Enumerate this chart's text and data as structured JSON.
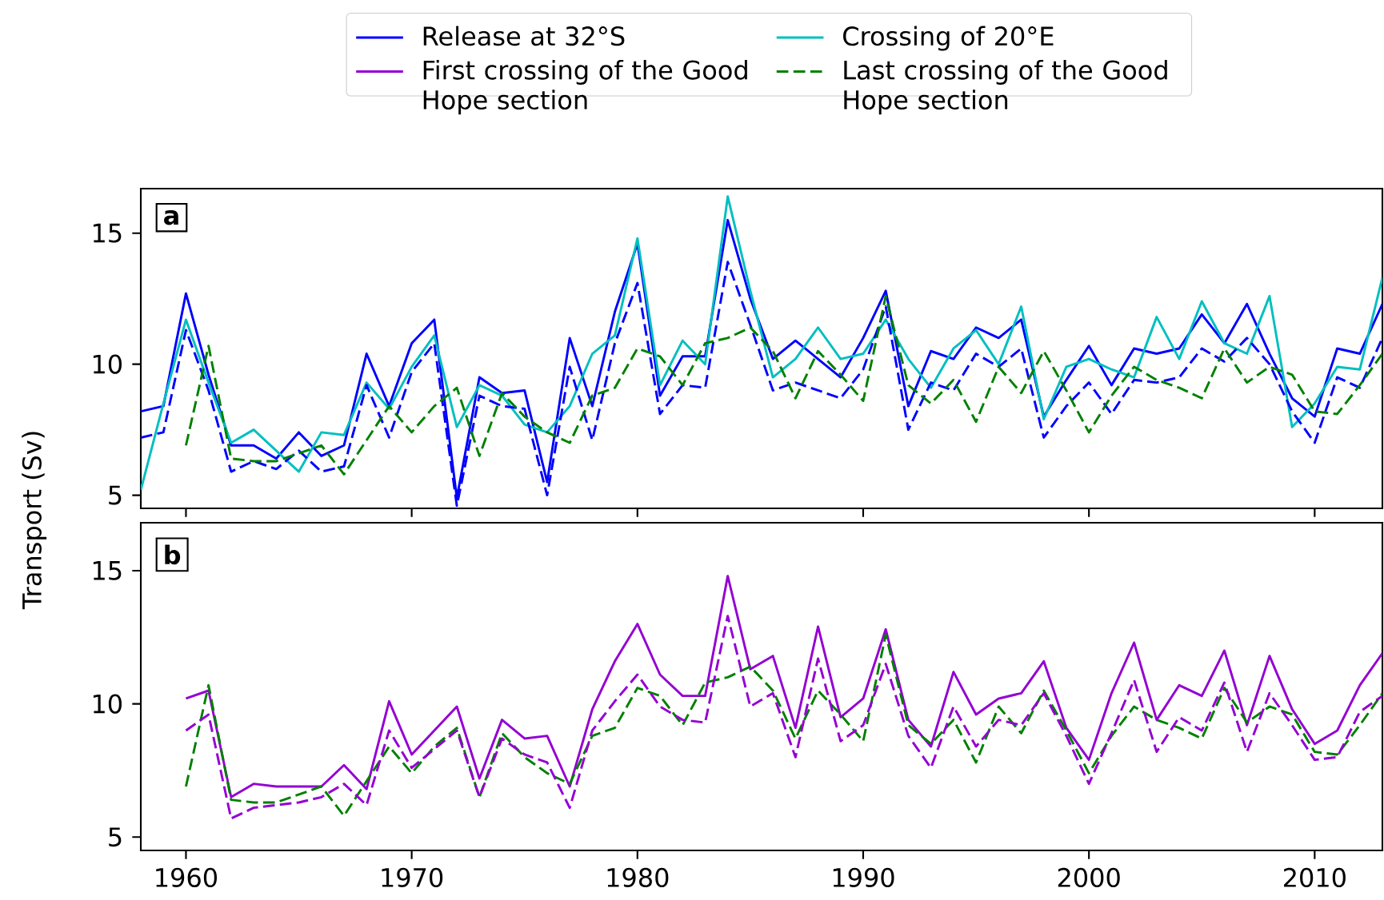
{
  "chart_data": [
    {
      "type": "line",
      "annotations": [
        "a"
      ],
      "legend": "top",
      "tick_labels": "y",
      "x": [
        1958,
        1959,
        1960,
        1961,
        1962,
        1963,
        1964,
        1965,
        1966,
        1967,
        1968,
        1969,
        1970,
        1971,
        1972,
        1973,
        1974,
        1975,
        1976,
        1977,
        1978,
        1979,
        1980,
        1981,
        1982,
        1983,
        1984,
        1985,
        1986,
        1987,
        1988,
        1989,
        1990,
        1991,
        1992,
        1993,
        1994,
        1995,
        1996,
        1997,
        1998,
        1999,
        2000,
        2001,
        2002,
        2003,
        2004,
        2005,
        2006,
        2007,
        2008,
        2009,
        2010,
        2011,
        2012,
        2013
      ],
      "xlim": [
        1958,
        2013
      ],
      "ylim": [
        4.5,
        16.7
      ],
      "xticks": [
        1960,
        1970,
        1980,
        1990,
        2000,
        2010
      ],
      "yticks": [
        5,
        10,
        15
      ],
      "series": [
        {
          "name": "Release at 32°S",
          "color": "#0000ff",
          "line_style": "solid",
          "values": [
            8.2,
            8.4,
            12.7,
            9.6,
            6.9,
            6.9,
            6.4,
            7.4,
            6.5,
            6.9,
            10.4,
            8.4,
            10.8,
            11.7,
            4.9,
            9.5,
            8.9,
            9.0,
            5.5,
            11.0,
            8.4,
            12.0,
            14.6,
            8.8,
            10.3,
            10.3,
            15.5,
            12.5,
            10.2,
            10.9,
            10.2,
            9.5,
            11.0,
            12.8,
            8.4,
            10.5,
            10.2,
            11.4,
            11.0,
            11.7,
            8.0,
            9.4,
            10.7,
            9.2,
            10.6,
            10.4,
            10.6,
            11.9,
            10.8,
            12.3,
            10.4,
            8.7,
            8.0,
            10.6,
            10.4,
            12.3
          ]
        },
        {
          "name": "Crossing of 20°E",
          "color": "#00bfbf",
          "line_style": "solid",
          "values": [
            5.2,
            8.5,
            11.7,
            9.3,
            7.0,
            7.5,
            6.7,
            5.9,
            7.4,
            7.3,
            9.3,
            8.3,
            9.9,
            11.1,
            7.6,
            9.2,
            8.8,
            7.7,
            7.4,
            8.4,
            10.4,
            11.1,
            14.8,
            9.2,
            10.9,
            10.0,
            16.4,
            12.8,
            9.5,
            10.2,
            11.4,
            10.2,
            10.4,
            11.7,
            10.2,
            9.1,
            10.6,
            11.3,
            10.0,
            12.2,
            7.9,
            9.9,
            10.2,
            9.8,
            9.5,
            11.8,
            10.2,
            12.4,
            10.8,
            10.4,
            12.6,
            7.6,
            8.5,
            9.9,
            9.8,
            13.3
          ]
        },
        {
          "color": "#0000ff",
          "line_style": "dashed",
          "values": [
            7.2,
            7.4,
            11.3,
            9.0,
            5.9,
            6.3,
            6.0,
            6.7,
            5.9,
            6.1,
            9.2,
            7.2,
            9.7,
            10.8,
            4.6,
            8.8,
            8.4,
            8.3,
            5.0,
            9.9,
            7.1,
            10.8,
            13.1,
            8.1,
            9.2,
            9.1,
            13.9,
            11.5,
            9.0,
            9.3,
            9.0,
            8.7,
            9.8,
            12.2,
            7.5,
            9.3,
            9.0,
            10.4,
            9.9,
            10.6,
            7.2,
            8.4,
            9.3,
            8.1,
            9.4,
            9.3,
            9.5,
            10.6,
            10.1,
            11.0,
            10.0,
            8.2,
            7.0,
            9.5,
            9.1,
            11.0
          ]
        },
        {
          "color": "#008000",
          "line_style": "dashed",
          "values": [
            null,
            null,
            6.9,
            10.7,
            6.4,
            6.3,
            6.3,
            6.6,
            6.9,
            5.8,
            7.1,
            8.4,
            7.4,
            8.4,
            9.1,
            6.5,
            8.9,
            8.0,
            7.4,
            7.0,
            8.8,
            9.1,
            10.6,
            10.3,
            9.2,
            10.8,
            11.0,
            11.4,
            10.5,
            8.7,
            10.5,
            9.6,
            8.6,
            12.6,
            9.2,
            8.5,
            9.4,
            7.8,
            9.9,
            8.9,
            10.5,
            9.0,
            7.4,
            8.8,
            9.9,
            9.4,
            9.1,
            8.7,
            10.6,
            9.3,
            9.9,
            9.6,
            8.2,
            8.1,
            9.2,
            10.4
          ]
        }
      ]
    },
    {
      "type": "line",
      "annotations": [
        "b"
      ],
      "ylabel": "Transport (Sv)",
      "x": [
        1960,
        1961,
        1962,
        1963,
        1964,
        1965,
        1966,
        1967,
        1968,
        1969,
        1970,
        1971,
        1972,
        1973,
        1974,
        1975,
        1976,
        1977,
        1978,
        1979,
        1980,
        1981,
        1982,
        1983,
        1984,
        1985,
        1986,
        1987,
        1988,
        1989,
        1990,
        1991,
        1992,
        1993,
        1994,
        1995,
        1996,
        1997,
        1998,
        1999,
        2000,
        2001,
        2002,
        2003,
        2004,
        2005,
        2006,
        2007,
        2008,
        2009,
        2010,
        2011,
        2012,
        2013
      ],
      "xlim": [
        1958,
        2013
      ],
      "ylim": [
        4.5,
        16.8
      ],
      "xticks": [
        1960,
        1970,
        1980,
        1990,
        2000,
        2010
      ],
      "yticks": [
        5,
        10,
        15
      ],
      "series": [
        {
          "name": "First crossing of the Good Hope section",
          "color": "#9400d3",
          "line_style": "solid",
          "values": [
            10.2,
            10.5,
            6.5,
            7.0,
            6.9,
            6.9,
            6.9,
            7.7,
            6.8,
            10.1,
            8.1,
            9.0,
            9.9,
            7.2,
            9.4,
            8.7,
            8.8,
            6.9,
            9.8,
            11.6,
            13.0,
            11.1,
            10.3,
            10.3,
            14.8,
            11.3,
            11.8,
            9.1,
            12.9,
            9.5,
            10.2,
            12.8,
            9.4,
            8.4,
            11.2,
            9.6,
            10.2,
            10.4,
            11.6,
            9.1,
            7.9,
            10.4,
            12.3,
            9.4,
            10.7,
            10.3,
            12.0,
            9.2,
            11.8,
            9.8,
            8.5,
            9.0,
            10.7,
            11.9
          ]
        },
        {
          "name": "Last crossing of the Good Hope section",
          "color": "#008000",
          "line_style": "dashed",
          "values": [
            6.9,
            10.7,
            6.4,
            6.3,
            6.3,
            6.6,
            6.9,
            5.8,
            7.1,
            8.4,
            7.4,
            8.4,
            9.1,
            6.5,
            8.9,
            8.0,
            7.4,
            7.0,
            8.8,
            9.1,
            10.6,
            10.3,
            9.2,
            10.8,
            11.0,
            11.4,
            10.5,
            8.7,
            10.5,
            9.6,
            8.6,
            12.6,
            9.2,
            8.5,
            9.4,
            7.8,
            9.9,
            8.9,
            10.5,
            9.0,
            7.4,
            8.8,
            9.9,
            9.4,
            9.1,
            8.7,
            10.6,
            9.3,
            9.9,
            9.6,
            8.2,
            8.1,
            9.2,
            10.4
          ]
        },
        {
          "color": "#9400d3",
          "line_style": "dashed",
          "values": [
            9.0,
            9.6,
            5.7,
            6.1,
            6.2,
            6.3,
            6.5,
            7.0,
            6.2,
            9.0,
            7.6,
            8.3,
            9.0,
            6.5,
            8.7,
            8.1,
            7.8,
            6.1,
            9.0,
            10.1,
            11.1,
            9.9,
            9.4,
            9.3,
            13.3,
            9.9,
            10.4,
            8.0,
            11.7,
            8.6,
            9.2,
            11.5,
            8.8,
            7.6,
            9.9,
            8.4,
            9.4,
            9.2,
            10.4,
            8.8,
            7.0,
            8.9,
            10.9,
            8.2,
            9.5,
            9.0,
            10.8,
            8.2,
            10.4,
            9.2,
            7.9,
            8.0,
            9.7,
            10.3
          ]
        }
      ]
    }
  ]
}
